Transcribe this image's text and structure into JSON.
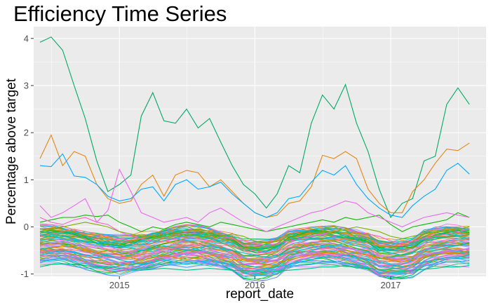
{
  "chart_data": {
    "type": "line",
    "title": "Efficiency Time Series",
    "xlabel": "report_date",
    "ylabel": "Percentage above target",
    "x_ticks": [
      "2015",
      "2016",
      "2017"
    ],
    "y_ticks": [
      -1,
      0,
      1,
      2,
      3,
      4
    ],
    "xlim": [
      "2014-05-15",
      "2017-09-15"
    ],
    "ylim": [
      -1.05,
      4.25
    ],
    "grid": true,
    "legend": "none",
    "x": [
      "2014-06-01",
      "2014-07-01",
      "2014-08-01",
      "2014-09-01",
      "2014-10-01",
      "2014-11-01",
      "2014-12-01",
      "2015-01-01",
      "2015-02-01",
      "2015-03-01",
      "2015-04-01",
      "2015-05-01",
      "2015-06-01",
      "2015-07-01",
      "2015-08-01",
      "2015-09-01",
      "2015-10-01",
      "2015-11-01",
      "2015-12-01",
      "2016-01-01",
      "2016-02-01",
      "2016-03-01",
      "2016-04-01",
      "2016-05-01",
      "2016-06-01",
      "2016-07-01",
      "2016-08-01",
      "2016-09-01",
      "2016-10-01",
      "2016-11-01",
      "2016-12-01",
      "2017-01-01",
      "2017-02-01",
      "2017-03-01",
      "2017-04-01",
      "2017-05-01",
      "2017-06-01",
      "2017-07-01",
      "2017-08-01"
    ],
    "series": [
      {
        "color": "#00AA66",
        "values": [
          3.92,
          4.03,
          3.75,
          3.0,
          2.3,
          1.4,
          0.75,
          0.9,
          1.1,
          2.35,
          2.85,
          2.25,
          2.2,
          2.5,
          2.1,
          2.3,
          1.8,
          1.3,
          0.9,
          0.7,
          0.4,
          0.7,
          1.3,
          1.15,
          2.2,
          2.8,
          2.5,
          3.02,
          2.2,
          1.6,
          0.8,
          0.2,
          0.5,
          0.6,
          1.4,
          1.5,
          2.6,
          2.95,
          2.6
        ]
      },
      {
        "color": "#E68613",
        "values": [
          1.45,
          1.95,
          1.3,
          1.6,
          1.5,
          0.9,
          0.6,
          0.5,
          0.55,
          0.9,
          1.1,
          0.65,
          1.1,
          1.2,
          1.15,
          0.85,
          1.0,
          0.75,
          0.5,
          0.3,
          0.2,
          0.25,
          0.5,
          0.55,
          0.85,
          1.52,
          1.45,
          1.6,
          1.45,
          0.8,
          0.5,
          0.3,
          0.3,
          0.75,
          1.0,
          1.35,
          1.65,
          1.62,
          1.78
        ]
      },
      {
        "color": "#00A9FF",
        "values": [
          1.3,
          1.28,
          1.55,
          1.08,
          1.05,
          0.9,
          0.65,
          0.55,
          0.6,
          0.8,
          0.85,
          0.55,
          0.9,
          1.0,
          0.8,
          0.85,
          0.95,
          0.7,
          0.5,
          0.3,
          0.2,
          0.3,
          0.6,
          0.65,
          0.95,
          1.2,
          1.1,
          1.3,
          0.9,
          0.6,
          0.4,
          0.25,
          0.2,
          0.45,
          0.65,
          0.8,
          1.2,
          1.35,
          1.12
        ]
      },
      {
        "color": "#0CB702",
        "values": [
          0.1,
          0.15,
          0.2,
          0.2,
          0.25,
          0.22,
          0.25,
          0.1,
          0.0,
          -0.1,
          0.0,
          -0.05,
          0.05,
          0.1,
          0.05,
          0.0,
          0.1,
          0.05,
          0.0,
          -0.05,
          -0.1,
          -0.05,
          0.0,
          0.05,
          0.1,
          0.15,
          0.1,
          0.2,
          0.15,
          0.2,
          0.25,
          0.05,
          -0.1,
          0.0,
          0.05,
          0.1,
          0.15,
          0.3,
          0.2
        ]
      },
      {
        "color": "#ED68ED",
        "values": [
          0.45,
          0.2,
          0.3,
          0.45,
          0.6,
          0.1,
          0.35,
          1.22,
          0.75,
          0.3,
          0.2,
          0.1,
          0.15,
          0.2,
          0.1,
          0.3,
          0.4,
          0.25,
          0.1,
          0.0,
          -0.1,
          0.0,
          0.1,
          0.2,
          0.3,
          0.35,
          0.45,
          0.55,
          0.5,
          0.3,
          0.2,
          0.1,
          0.0,
          0.1,
          0.2,
          0.25,
          0.3,
          0.25,
          0.2
        ]
      },
      {
        "color": "#FF61CC",
        "values": [
          0.2,
          0.1,
          0.05,
          0.15,
          0.2,
          0.1,
          0.05,
          -0.1,
          -0.2,
          -0.25,
          -0.3,
          -0.3,
          -0.25,
          -0.2,
          -0.25,
          -0.3,
          -0.2,
          -0.25,
          -0.3,
          -0.35,
          -0.4,
          -0.35,
          -0.3,
          -0.25,
          -0.2,
          -0.15,
          -0.1,
          -0.05,
          -0.1,
          -0.15,
          -0.2,
          -0.3,
          -0.35,
          -0.3,
          -0.25,
          -0.2,
          -0.15,
          -0.1,
          -0.05
        ]
      },
      {
        "color": "#7CAE00",
        "values": [
          -0.1,
          -0.05,
          0.0,
          0.05,
          0.1,
          0.05,
          0.0,
          -0.1,
          -0.15,
          -0.2,
          -0.2,
          -0.25,
          -0.2,
          -0.15,
          -0.2,
          -0.25,
          -0.2,
          -0.15,
          -0.2,
          -0.3,
          -0.35,
          -0.3,
          -0.25,
          -0.2,
          -0.15,
          -0.1,
          -0.1,
          -0.05,
          0.0,
          -0.05,
          -0.1,
          -0.2,
          -0.25,
          -0.2,
          -0.15,
          -0.1,
          -0.1,
          -0.05,
          0.0
        ]
      },
      {
        "color": "#F8766D",
        "values": [
          -0.2,
          -0.15,
          -0.1,
          -0.05,
          -0.1,
          -0.15,
          -0.2,
          -0.3,
          -0.35,
          -0.4,
          -0.35,
          -0.3,
          -0.35,
          -0.4,
          -0.35,
          -0.3,
          -0.35,
          -0.4,
          -0.45,
          -0.5,
          -0.55,
          -0.5,
          -0.45,
          -0.4,
          -0.35,
          -0.3,
          -0.3,
          -0.25,
          -0.3,
          -0.35,
          -0.4,
          -0.45,
          -0.5,
          -0.45,
          -0.4,
          -0.35,
          -0.3,
          -0.3,
          -0.25
        ]
      },
      {
        "color": "#00BFC4",
        "values": [
          -0.3,
          -0.25,
          -0.2,
          -0.25,
          -0.3,
          -0.35,
          -0.3,
          -0.4,
          -0.45,
          -0.5,
          -0.45,
          -0.4,
          -0.45,
          -0.5,
          -0.45,
          -0.4,
          -0.45,
          -0.5,
          -0.55,
          -0.6,
          -0.65,
          -0.6,
          -0.55,
          -0.5,
          -0.45,
          -0.4,
          -0.4,
          -0.35,
          -0.4,
          -0.45,
          -0.5,
          -0.55,
          -0.6,
          -0.55,
          -0.5,
          -0.45,
          -0.4,
          -0.4,
          -0.35
        ]
      },
      {
        "color": "#C77CFF",
        "values": [
          -0.4,
          -0.35,
          -0.3,
          -0.35,
          -0.4,
          -0.45,
          -0.4,
          -0.5,
          -0.55,
          -0.6,
          -0.55,
          -0.5,
          -0.55,
          -0.6,
          -0.55,
          -0.5,
          -0.55,
          -0.6,
          -0.65,
          -0.7,
          -0.75,
          -0.7,
          -0.65,
          -0.6,
          -0.55,
          -0.5,
          -0.5,
          -0.45,
          -0.5,
          -0.55,
          -0.6,
          -0.65,
          -0.7,
          -0.65,
          -0.6,
          -0.55,
          -0.5,
          -0.5,
          -0.45
        ]
      },
      {
        "color": "#DE8C00",
        "values": [
          -0.5,
          -0.45,
          -0.4,
          -0.45,
          -0.5,
          -0.55,
          -0.5,
          -0.6,
          -0.65,
          -0.7,
          -0.65,
          -0.6,
          -0.65,
          -0.7,
          -0.65,
          -0.6,
          -0.65,
          -0.7,
          -0.7,
          -0.75,
          -0.8,
          -0.75,
          -0.7,
          -0.65,
          -0.6,
          -0.55,
          -0.55,
          -0.5,
          -0.55,
          -0.6,
          -0.65,
          -0.7,
          -0.75,
          -0.7,
          -0.65,
          -0.6,
          -0.55,
          -0.55,
          -0.5
        ]
      },
      {
        "color": "#00B8E7",
        "values": [
          -0.6,
          -0.55,
          -0.5,
          -0.55,
          -0.6,
          -0.65,
          -0.6,
          -0.7,
          -0.75,
          -0.8,
          -0.75,
          -0.7,
          -0.75,
          -0.8,
          -0.75,
          -0.7,
          -0.75,
          -0.8,
          -0.8,
          -0.85,
          -0.88,
          -0.85,
          -0.8,
          -0.75,
          -0.7,
          -0.65,
          -0.65,
          -0.6,
          -0.65,
          -0.7,
          -0.75,
          -0.8,
          -0.85,
          -0.8,
          -0.75,
          -0.7,
          -0.65,
          -0.65,
          -0.6
        ]
      },
      {
        "color": "#619CFF",
        "values": [
          -0.7,
          -0.65,
          -0.6,
          -0.65,
          -0.7,
          -0.72,
          -0.7,
          -0.78,
          -0.82,
          -0.86,
          -0.82,
          -0.8,
          -0.82,
          -0.86,
          -0.82,
          -0.8,
          -0.82,
          -0.86,
          -0.88,
          -0.9,
          -0.92,
          -0.9,
          -0.86,
          -0.82,
          -0.8,
          -0.75,
          -0.75,
          -0.7,
          -0.75,
          -0.8,
          -0.82,
          -0.86,
          -0.9,
          -0.86,
          -0.82,
          -0.8,
          -0.75,
          -0.75,
          -0.7
        ]
      },
      {
        "color": "#00C08B",
        "values": [
          -0.85,
          -0.8,
          -0.78,
          -0.8,
          -0.82,
          -0.85,
          -0.84,
          -0.88,
          -0.9,
          -0.92,
          -0.9,
          -0.88,
          -0.9,
          -0.92,
          -0.9,
          -0.88,
          -0.9,
          -0.92,
          -0.93,
          -0.94,
          -0.95,
          -0.94,
          -0.92,
          -0.9,
          -0.88,
          -0.85,
          -0.85,
          -0.82,
          -0.85,
          -0.88,
          -0.9,
          -0.92,
          -0.94,
          -0.92,
          -0.9,
          -0.88,
          -0.85,
          -0.85,
          -0.82
        ]
      }
    ]
  }
}
